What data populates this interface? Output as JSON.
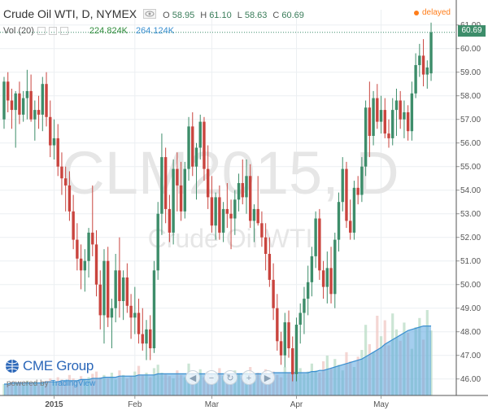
{
  "header": {
    "symbol": "Crude Oil WTI, D, NYMEX",
    "ohlc": [
      {
        "key": "O",
        "value": "58.95"
      },
      {
        "key": "H",
        "value": "61.10"
      },
      {
        "key": "L",
        "value": "58.63"
      },
      {
        "key": "C",
        "value": "60.69"
      }
    ],
    "delayed": "delayed"
  },
  "volume": {
    "label": "Vol (20)",
    "value_a": "224.824K",
    "value_b": "264.124K"
  },
  "watermark": {
    "line1": "CLM2015, D",
    "line2": "Crude Oil WTI"
  },
  "price_tag": "60.69",
  "branding": {
    "logo": "CME Group",
    "powered_prefix": "powered by ",
    "powered_brand": "TradingView"
  },
  "nav_icons": [
    "back-icon",
    "zoom-out-icon",
    "reset-icon",
    "zoom-in-icon",
    "forward-icon"
  ],
  "colors": {
    "up": "#3d8d6a",
    "down": "#c9443e",
    "accent": "#ff7d1a",
    "volume_area": "#5aa6e0"
  },
  "chart_data": {
    "type": "candlestick",
    "y_ticks": [
      "61.00",
      "60.00",
      "59.00",
      "58.00",
      "57.00",
      "56.00",
      "55.00",
      "54.00",
      "53.00",
      "52.00",
      "51.00",
      "50.00",
      "49.00",
      "48.00",
      "47.00",
      "46.00"
    ],
    "x_ticks": [
      "2015",
      "Feb",
      "Mar",
      "Apr",
      "May"
    ],
    "ylim": [
      45.3,
      61.3
    ],
    "candles": [
      [
        57.0,
        58.8,
        56.6,
        58.6
      ],
      [
        58.6,
        59.0,
        57.3,
        57.8
      ],
      [
        57.8,
        58.3,
        56.6,
        57.4
      ],
      [
        57.4,
        58.2,
        55.8,
        58.1
      ],
      [
        58.1,
        58.6,
        56.8,
        57.2
      ],
      [
        57.2,
        58.2,
        56.9,
        57.9
      ],
      [
        57.9,
        59.1,
        57.0,
        58.2
      ],
      [
        58.2,
        58.9,
        56.9,
        57.0
      ],
      [
        57.0,
        57.8,
        56.1,
        57.4
      ],
      [
        57.4,
        58.0,
        56.6,
        57.2
      ],
      [
        57.2,
        58.8,
        56.5,
        58.5
      ],
      [
        58.5,
        59.0,
        56.7,
        57.1
      ],
      [
        57.1,
        57.8,
        55.4,
        55.9
      ],
      [
        55.9,
        57.0,
        55.3,
        56.2
      ],
      [
        56.2,
        56.8,
        54.6,
        55.0
      ],
      [
        55.0,
        55.6,
        53.8,
        54.5
      ],
      [
        54.5,
        55.0,
        53.1,
        54.2
      ],
      [
        54.2,
        54.8,
        52.7,
        53.1
      ],
      [
        53.1,
        53.8,
        51.5,
        51.9
      ],
      [
        51.9,
        52.6,
        50.6,
        51.1
      ],
      [
        51.1,
        51.7,
        49.8,
        50.6
      ],
      [
        50.6,
        51.5,
        49.7,
        51.0
      ],
      [
        51.0,
        52.4,
        50.3,
        52.2
      ],
      [
        52.2,
        54.2,
        51.2,
        51.7
      ],
      [
        51.7,
        52.3,
        49.5,
        50.0
      ],
      [
        50.0,
        50.6,
        48.1,
        48.7
      ],
      [
        48.7,
        51.5,
        47.5,
        51.0
      ],
      [
        51.0,
        51.6,
        48.2,
        48.6
      ],
      [
        48.6,
        49.4,
        47.3,
        49.0
      ],
      [
        49.0,
        51.3,
        48.4,
        50.6
      ],
      [
        50.6,
        52.0,
        48.6,
        49.3
      ],
      [
        49.3,
        50.6,
        48.5,
        50.3
      ],
      [
        50.3,
        50.9,
        48.8,
        49.1
      ],
      [
        49.1,
        49.6,
        47.7,
        48.6
      ],
      [
        48.6,
        49.9,
        47.9,
        48.8
      ],
      [
        48.8,
        49.4,
        47.5,
        47.9
      ],
      [
        47.9,
        49.0,
        47.2,
        47.5
      ],
      [
        47.5,
        48.5,
        46.8,
        48.1
      ],
      [
        48.1,
        48.7,
        46.8,
        47.3
      ],
      [
        47.3,
        51.0,
        47.1,
        50.6
      ],
      [
        50.6,
        53.5,
        50.2,
        53.0
      ],
      [
        53.0,
        56.4,
        52.1,
        55.4
      ],
      [
        55.4,
        55.8,
        52.6,
        53.2
      ],
      [
        53.2,
        53.8,
        51.8,
        52.2
      ],
      [
        52.2,
        55.3,
        51.7,
        54.9
      ],
      [
        54.9,
        55.6,
        53.1,
        54.2
      ],
      [
        54.2,
        55.2,
        52.7,
        53.1
      ],
      [
        53.1,
        55.2,
        52.8,
        54.9
      ],
      [
        54.9,
        57.1,
        54.4,
        56.7
      ],
      [
        56.7,
        57.3,
        54.6,
        55.0
      ],
      [
        55.0,
        56.0,
        53.6,
        55.8
      ],
      [
        55.8,
        57.2,
        55.3,
        56.9
      ],
      [
        56.9,
        57.1,
        54.4,
        54.9
      ],
      [
        54.9,
        55.9,
        53.2,
        53.7
      ],
      [
        53.7,
        54.6,
        52.2,
        52.5
      ],
      [
        52.5,
        53.9,
        51.9,
        53.7
      ],
      [
        53.7,
        54.2,
        51.9,
        52.2
      ],
      [
        52.2,
        53.5,
        51.8,
        53.2
      ],
      [
        53.2,
        54.3,
        52.4,
        53.0
      ],
      [
        53.0,
        53.6,
        51.5,
        52.8
      ],
      [
        52.8,
        54.0,
        52.1,
        53.6
      ],
      [
        53.6,
        54.7,
        53.1,
        54.3
      ],
      [
        54.3,
        55.3,
        53.4,
        53.7
      ],
      [
        53.7,
        55.3,
        53.0,
        54.6
      ],
      [
        54.6,
        55.1,
        52.4,
        52.7
      ],
      [
        52.7,
        53.4,
        51.8,
        53.2
      ],
      [
        53.2,
        54.6,
        52.5,
        52.6
      ],
      [
        52.6,
        53.1,
        51.6,
        52.0
      ],
      [
        52.0,
        52.6,
        50.6,
        51.3
      ],
      [
        51.3,
        52.0,
        49.9,
        50.2
      ],
      [
        50.2,
        50.9,
        48.5,
        49.0
      ],
      [
        49.0,
        49.6,
        47.2,
        47.6
      ],
      [
        47.6,
        48.0,
        46.6,
        47.0
      ],
      [
        47.0,
        48.8,
        46.5,
        48.4
      ],
      [
        48.4,
        48.9,
        46.9,
        47.3
      ],
      [
        47.3,
        47.8,
        45.9,
        46.2
      ],
      [
        46.2,
        48.6,
        45.9,
        48.3
      ],
      [
        48.3,
        49.2,
        47.5,
        48.8
      ],
      [
        48.8,
        49.9,
        47.9,
        49.4
      ],
      [
        49.4,
        50.8,
        48.7,
        50.1
      ],
      [
        50.1,
        51.6,
        49.5,
        51.2
      ],
      [
        51.2,
        53.1,
        50.7,
        52.8
      ],
      [
        52.8,
        53.2,
        50.2,
        50.6
      ],
      [
        50.6,
        51.0,
        49.4,
        49.9
      ],
      [
        49.9,
        51.4,
        49.2,
        50.7
      ],
      [
        50.7,
        51.6,
        49.2,
        49.6
      ],
      [
        49.6,
        52.2,
        49.0,
        51.9
      ],
      [
        51.9,
        53.9,
        51.4,
        53.5
      ],
      [
        53.5,
        55.4,
        53.1,
        54.9
      ],
      [
        54.9,
        55.2,
        52.4,
        52.7
      ],
      [
        52.7,
        53.6,
        51.9,
        52.2
      ],
      [
        52.2,
        54.4,
        51.9,
        54.1
      ],
      [
        54.1,
        54.6,
        53.4,
        53.8
      ],
      [
        53.8,
        55.4,
        53.5,
        55.0
      ],
      [
        55.0,
        57.8,
        54.6,
        57.5
      ],
      [
        57.5,
        58.6,
        55.4,
        56.3
      ],
      [
        56.3,
        58.2,
        55.9,
        57.9
      ],
      [
        57.9,
        58.5,
        56.6,
        56.9
      ],
      [
        56.9,
        58.0,
        56.4,
        57.4
      ],
      [
        57.4,
        57.9,
        56.2,
        56.4
      ],
      [
        56.4,
        57.0,
        55.8,
        56.2
      ],
      [
        56.2,
        57.9,
        55.9,
        57.4
      ],
      [
        57.4,
        58.3,
        56.3,
        57.8
      ],
      [
        57.8,
        58.2,
        56.6,
        57.0
      ],
      [
        57.0,
        57.8,
        56.2,
        57.3
      ],
      [
        57.3,
        57.6,
        56.1,
        56.5
      ],
      [
        56.5,
        58.6,
        56.1,
        58.1
      ],
      [
        58.1,
        59.8,
        57.9,
        59.3
      ],
      [
        59.3,
        60.2,
        58.8,
        59.7
      ],
      [
        59.7,
        60.4,
        58.4,
        58.9
      ],
      [
        58.9,
        59.5,
        58.3,
        59.2
      ],
      [
        58.95,
        61.1,
        58.63,
        60.69
      ]
    ],
    "volume": [
      0.1,
      0.1,
      0.12,
      0.11,
      0.12,
      0.1,
      0.13,
      0.11,
      0.12,
      0.1,
      0.11,
      0.13,
      0.15,
      0.12,
      0.16,
      0.14,
      0.12,
      0.18,
      0.15,
      0.13,
      0.17,
      0.14,
      0.16,
      0.19,
      0.21,
      0.16,
      0.18,
      0.15,
      0.2,
      0.14,
      0.22,
      0.18,
      0.15,
      0.17,
      0.21,
      0.26,
      0.18,
      0.2,
      0.16,
      0.24,
      0.27,
      0.2,
      0.19,
      0.17,
      0.15,
      0.22,
      0.18,
      0.16,
      0.28,
      0.2,
      0.18,
      0.23,
      0.16,
      0.21,
      0.18,
      0.19,
      0.24,
      0.17,
      0.2,
      0.18,
      0.22,
      0.19,
      0.16,
      0.21,
      0.25,
      0.18,
      0.2,
      0.17,
      0.23,
      0.19,
      0.21,
      0.18,
      0.16,
      0.25,
      0.2,
      0.22,
      0.18,
      0.24,
      0.19,
      0.21,
      0.28,
      0.22,
      0.2,
      0.3,
      0.35,
      0.24,
      0.32,
      0.27,
      0.22,
      0.38,
      0.3,
      0.25,
      0.34,
      0.4,
      0.62,
      0.45,
      0.38,
      0.7,
      0.52,
      0.66,
      0.44,
      0.72,
      0.58,
      0.48,
      0.64,
      0.55,
      0.41,
      0.6,
      0.68,
      0.49,
      0.75,
      0.57
    ],
    "volume_avg": [
      0.1,
      0.1,
      0.11,
      0.11,
      0.11,
      0.11,
      0.11,
      0.11,
      0.11,
      0.11,
      0.11,
      0.12,
      0.12,
      0.12,
      0.12,
      0.13,
      0.13,
      0.13,
      0.13,
      0.13,
      0.14,
      0.14,
      0.14,
      0.15,
      0.15,
      0.15,
      0.16,
      0.16,
      0.16,
      0.16,
      0.17,
      0.17,
      0.17,
      0.17,
      0.17,
      0.18,
      0.18,
      0.18,
      0.18,
      0.18,
      0.19,
      0.19,
      0.19,
      0.19,
      0.19,
      0.19,
      0.19,
      0.19,
      0.19,
      0.19,
      0.19,
      0.19,
      0.19,
      0.19,
      0.19,
      0.19,
      0.19,
      0.19,
      0.19,
      0.19,
      0.19,
      0.19,
      0.19,
      0.19,
      0.19,
      0.19,
      0.19,
      0.19,
      0.19,
      0.19,
      0.2,
      0.2,
      0.2,
      0.2,
      0.2,
      0.2,
      0.2,
      0.2,
      0.2,
      0.2,
      0.21,
      0.21,
      0.22,
      0.22,
      0.23,
      0.24,
      0.25,
      0.26,
      0.27,
      0.28,
      0.29,
      0.3,
      0.31,
      0.32,
      0.34,
      0.36,
      0.38,
      0.4,
      0.42,
      0.45,
      0.47,
      0.49,
      0.51,
      0.53,
      0.55,
      0.57,
      0.58,
      0.59,
      0.6,
      0.61,
      0.61,
      0.61
    ]
  }
}
